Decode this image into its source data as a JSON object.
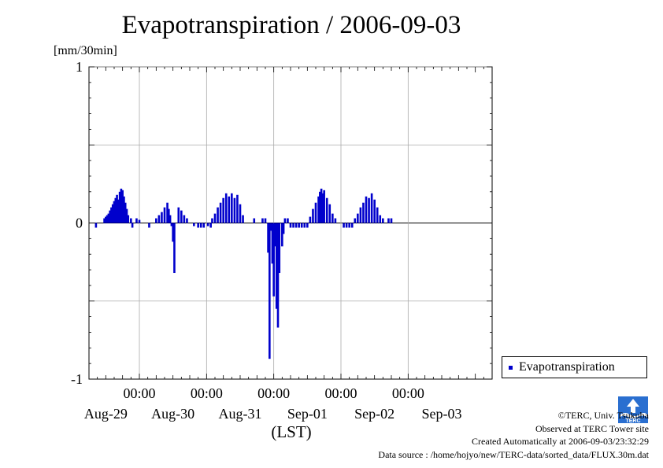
{
  "title": "Evapotranspiration / 2006-09-03",
  "unit_label": "[mm/30min]",
  "legend": {
    "label": "Evapotranspiration",
    "color": "#0000cc"
  },
  "logo_text": "TERC",
  "credits": {
    "copyright": "©TERC, Univ. Tsukuba",
    "observed": "Observed at TERC Tower site",
    "created": "Created Automatically at 2006-09-03/23:32:29",
    "source": "Data source : /home/hojyo/new/TERC-data/sorted_data/FLUX.30m.dat"
  },
  "chart_data": {
    "type": "bar",
    "title": "Evapotranspiration / 2006-09-03",
    "ylabel": "[mm/30min]",
    "xlabel": "(LST)",
    "ylim": [
      -1,
      1
    ],
    "y_ticks": [
      {
        "value": 1,
        "label": "1"
      },
      {
        "value": 0,
        "label": "0"
      },
      {
        "value": -1,
        "label": "-1"
      }
    ],
    "x_range_hours": [
      -18,
      126
    ],
    "x_ticks": [
      {
        "time_label": "00:00",
        "date_label": "Aug-30"
      },
      {
        "time_label": "00:00",
        "date_label": "Aug-31"
      },
      {
        "time_label": "00:00",
        "date_label": "Sep-01"
      },
      {
        "time_label": "00:00",
        "date_label": "Sep-02"
      },
      {
        "time_label": "00:00",
        "date_label": "Sep-03"
      }
    ],
    "date_labels": [
      "Aug-29",
      "Aug-30",
      "Aug-31",
      "Sep-01",
      "Sep-02",
      "Sep-03"
    ],
    "grid": true,
    "legend_position": "right",
    "series": [
      {
        "name": "Evapotranspiration",
        "color": "#0000cc",
        "points": [
          [
            -15.5,
            -0.03
          ],
          [
            -12.5,
            0.03
          ],
          [
            -12.0,
            0.04
          ],
          [
            -11.5,
            0.05
          ],
          [
            -11.0,
            0.06
          ],
          [
            -10.5,
            0.08
          ],
          [
            -10.0,
            0.1
          ],
          [
            -9.5,
            0.12
          ],
          [
            -9.0,
            0.14
          ],
          [
            -8.5,
            0.16
          ],
          [
            -8.0,
            0.18
          ],
          [
            -7.5,
            0.15
          ],
          [
            -7.0,
            0.2
          ],
          [
            -6.5,
            0.22
          ],
          [
            -6.0,
            0.21
          ],
          [
            -5.5,
            0.17
          ],
          [
            -5.0,
            0.13
          ],
          [
            -4.5,
            0.09
          ],
          [
            -4.0,
            0.05
          ],
          [
            -3.0,
            0.03
          ],
          [
            -2.5,
            -0.03
          ],
          [
            -1.0,
            0.03
          ],
          [
            0.0,
            0.02
          ],
          [
            3.5,
            -0.03
          ],
          [
            6.0,
            0.03
          ],
          [
            7.0,
            0.05
          ],
          [
            8.0,
            0.07
          ],
          [
            9.0,
            0.1
          ],
          [
            10.0,
            0.13
          ],
          [
            10.5,
            0.09
          ],
          [
            11.0,
            0.05
          ],
          [
            11.5,
            -0.02
          ],
          [
            12.0,
            -0.12
          ],
          [
            12.5,
            -0.32
          ],
          [
            14.0,
            0.1
          ],
          [
            15.0,
            0.08
          ],
          [
            16.0,
            0.05
          ],
          [
            17.0,
            0.03
          ],
          [
            19.5,
            -0.02
          ],
          [
            21.0,
            -0.03
          ],
          [
            22.0,
            -0.03
          ],
          [
            23.0,
            -0.03
          ],
          [
            24.5,
            -0.02
          ],
          [
            25.5,
            -0.03
          ],
          [
            26.0,
            0.03
          ],
          [
            27.0,
            0.06
          ],
          [
            28.0,
            0.1
          ],
          [
            29.0,
            0.13
          ],
          [
            30.0,
            0.16
          ],
          [
            31.0,
            0.19
          ],
          [
            32.0,
            0.17
          ],
          [
            33.0,
            0.19
          ],
          [
            34.0,
            0.16
          ],
          [
            35.0,
            0.18
          ],
          [
            36.0,
            0.12
          ],
          [
            37.0,
            0.05
          ],
          [
            41.0,
            0.03
          ],
          [
            44.0,
            0.03
          ],
          [
            45.0,
            0.03
          ],
          [
            46.0,
            -0.19
          ],
          [
            46.5,
            -0.87
          ],
          [
            47.0,
            -0.05
          ],
          [
            47.5,
            -0.26
          ],
          [
            48.0,
            -0.47
          ],
          [
            48.5,
            -0.15
          ],
          [
            49.0,
            -0.55
          ],
          [
            49.5,
            -0.67
          ],
          [
            50.0,
            -0.32
          ],
          [
            51.0,
            -0.15
          ],
          [
            51.5,
            -0.07
          ],
          [
            52.0,
            0.03
          ],
          [
            53.0,
            0.03
          ],
          [
            54.0,
            -0.03
          ],
          [
            55.0,
            -0.03
          ],
          [
            56.0,
            -0.03
          ],
          [
            57.0,
            -0.03
          ],
          [
            58.0,
            -0.03
          ],
          [
            59.0,
            -0.03
          ],
          [
            60.0,
            -0.03
          ],
          [
            61.0,
            0.04
          ],
          [
            62.0,
            0.09
          ],
          [
            63.0,
            0.13
          ],
          [
            64.0,
            0.17
          ],
          [
            64.5,
            0.2
          ],
          [
            65.0,
            0.22
          ],
          [
            65.5,
            0.19
          ],
          [
            66.0,
            0.21
          ],
          [
            67.0,
            0.16
          ],
          [
            68.0,
            0.12
          ],
          [
            69.0,
            0.06
          ],
          [
            70.0,
            0.03
          ],
          [
            73.0,
            -0.03
          ],
          [
            74.0,
            -0.03
          ],
          [
            75.0,
            -0.03
          ],
          [
            76.0,
            -0.03
          ],
          [
            77.0,
            0.03
          ],
          [
            78.0,
            0.06
          ],
          [
            79.0,
            0.1
          ],
          [
            80.0,
            0.13
          ],
          [
            81.0,
            0.17
          ],
          [
            82.0,
            0.16
          ],
          [
            83.0,
            0.19
          ],
          [
            84.0,
            0.15
          ],
          [
            85.0,
            0.1
          ],
          [
            86.0,
            0.05
          ],
          [
            87.0,
            0.03
          ],
          [
            89.0,
            0.03
          ],
          [
            90.0,
            0.03
          ]
        ]
      }
    ]
  }
}
